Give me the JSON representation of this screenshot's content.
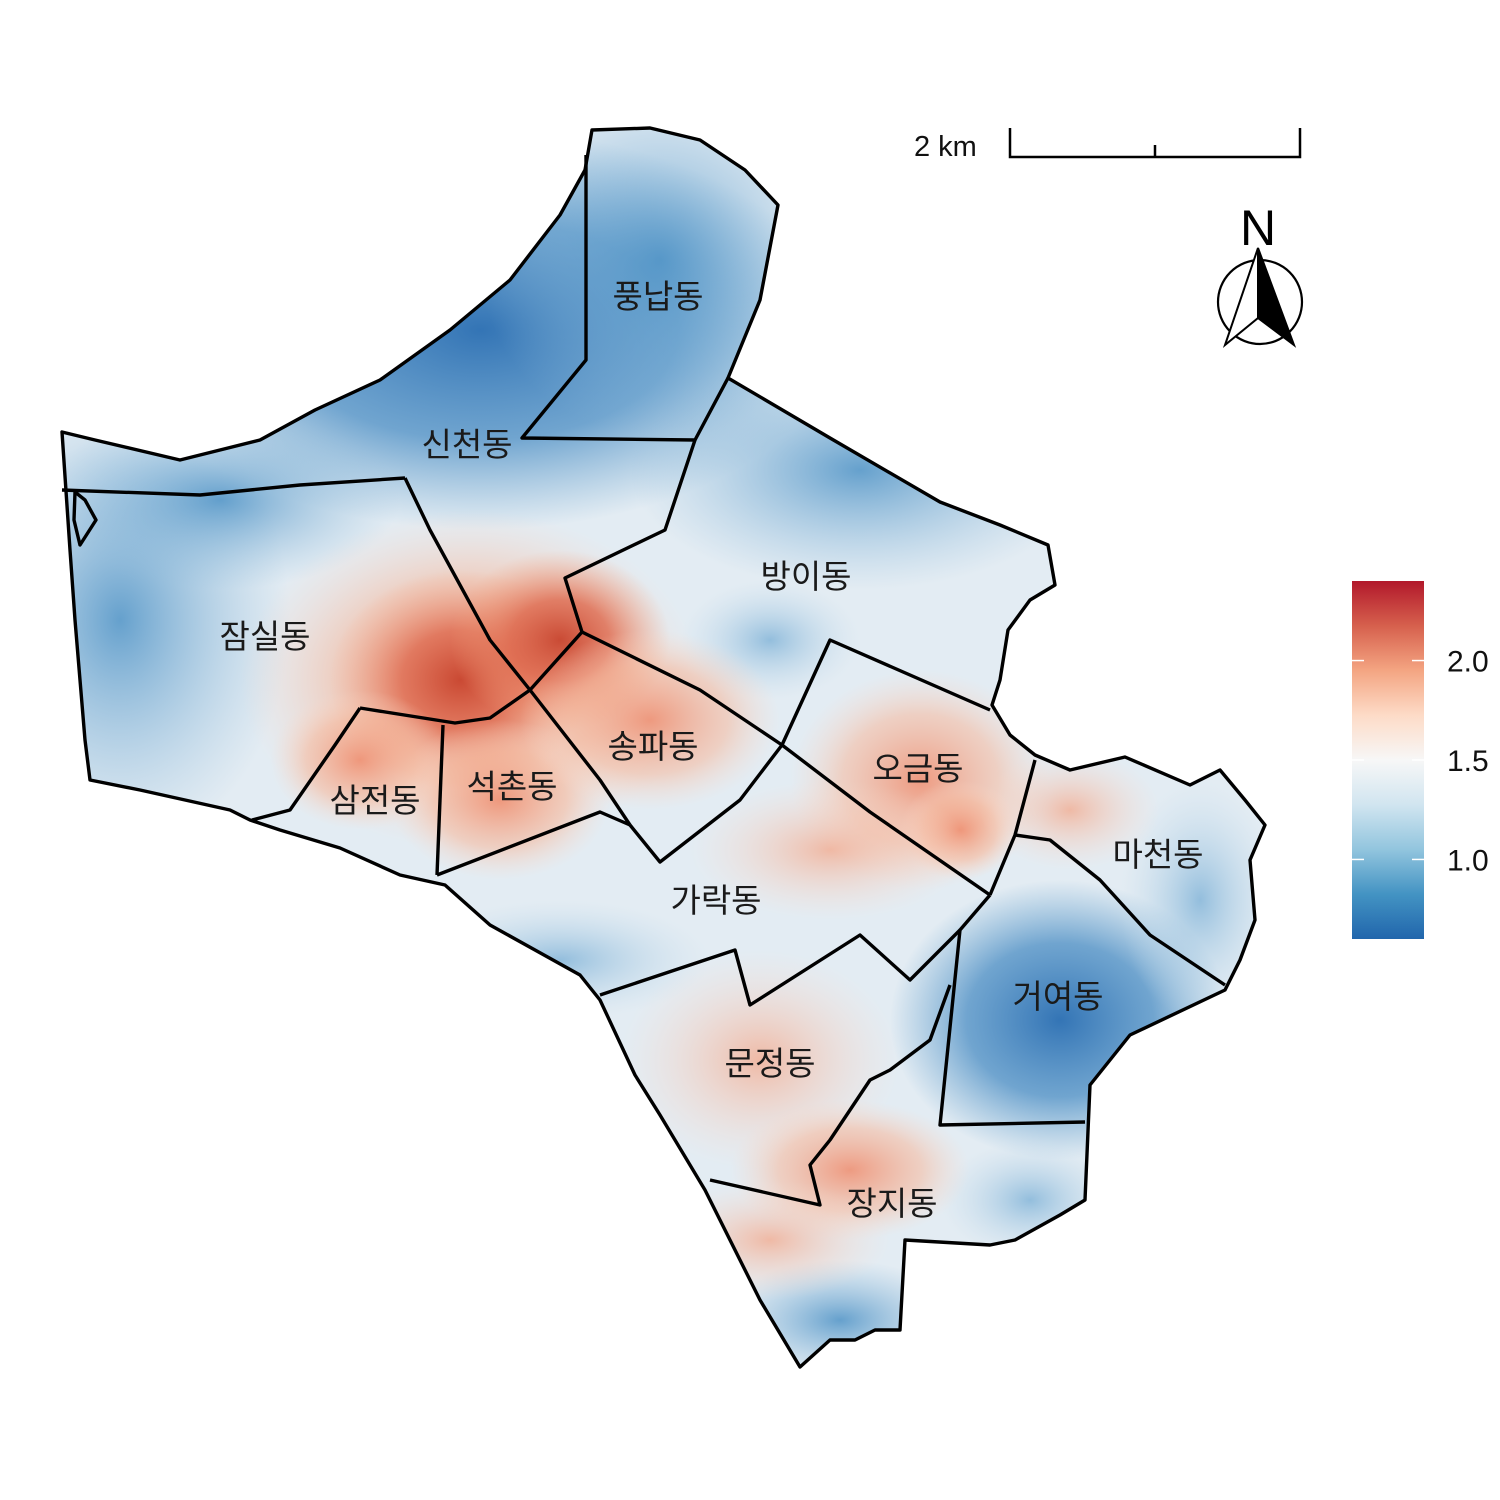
{
  "map": {
    "districts": [
      {
        "id": "pungnap",
        "name": "풍납동"
      },
      {
        "id": "sincheon",
        "name": "신천동"
      },
      {
        "id": "jamsil",
        "name": "잠실동"
      },
      {
        "id": "bangi",
        "name": "방이동"
      },
      {
        "id": "songpa",
        "name": "송파동"
      },
      {
        "id": "samjeon",
        "name": "삼전동"
      },
      {
        "id": "seokchon",
        "name": "석촌동"
      },
      {
        "id": "ogeum",
        "name": "오금동"
      },
      {
        "id": "macheon",
        "name": "마천동"
      },
      {
        "id": "garak",
        "name": "가락동"
      },
      {
        "id": "geoyeo",
        "name": "거여동"
      },
      {
        "id": "munjeong",
        "name": "문정동"
      },
      {
        "id": "jangji",
        "name": "장지동"
      }
    ]
  },
  "scale_bar": {
    "label": "2 km"
  },
  "north_arrow": {
    "label": "N"
  },
  "legend": {
    "min": 0.6,
    "max": 2.4,
    "ticks": [
      {
        "value": 1.0,
        "label": "1.0"
      },
      {
        "value": 1.5,
        "label": "1.5"
      },
      {
        "value": 2.0,
        "label": "2.0"
      }
    ],
    "colors": [
      "#2166ac",
      "#4393c3",
      "#92c5de",
      "#d1e5f0",
      "#f7f7f7",
      "#fddbc7",
      "#f4a582",
      "#d6604d",
      "#b2182b"
    ]
  }
}
